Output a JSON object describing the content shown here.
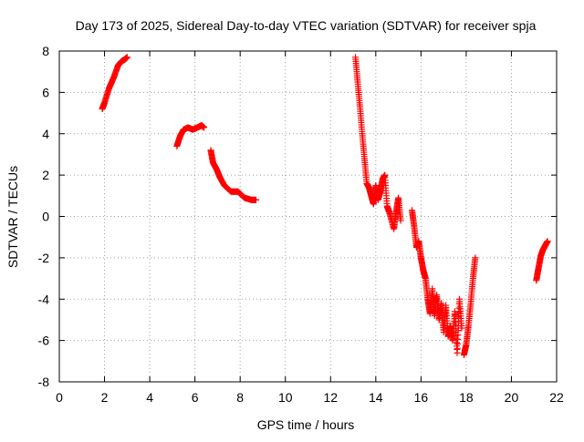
{
  "chart_data": {
    "type": "scatter",
    "title": "Day 173 of 2025, Sidereal Day-to-day VTEC variation (SDTVAR) for receiver spja",
    "xlabel": "GPS time / hours",
    "ylabel": "SDTVAR / TECUs",
    "xlim": [
      0,
      22
    ],
    "ylim": [
      -8,
      8
    ],
    "xticks": [
      0,
      2,
      4,
      6,
      8,
      10,
      12,
      14,
      16,
      18,
      20,
      22
    ],
    "yticks": [
      -8,
      -6,
      -4,
      -2,
      0,
      2,
      4,
      6,
      8
    ],
    "grid": true,
    "marker": "+",
    "color": "#ff0000",
    "series": [
      {
        "name": "SDTVAR",
        "segments": [
          {
            "x": [
              1.9,
              2.0,
              2.2,
              2.4,
              2.6,
              2.75,
              2.9,
              3.0
            ],
            "y": [
              5.2,
              5.5,
              6.2,
              6.7,
              7.3,
              7.5,
              7.6,
              7.7
            ]
          },
          {
            "x": [
              5.2,
              5.35,
              5.5,
              5.7,
              5.9,
              6.1,
              6.3,
              6.4
            ],
            "y": [
              3.4,
              3.9,
              4.2,
              4.3,
              4.2,
              4.3,
              4.4,
              4.3
            ]
          },
          {
            "x": [
              6.7,
              6.8,
              6.95,
              7.1,
              7.3,
              7.6,
              7.9,
              8.2,
              8.5,
              8.7
            ],
            "y": [
              3.2,
              2.6,
              2.3,
              1.9,
              1.5,
              1.2,
              1.2,
              0.9,
              0.8,
              0.8
            ]
          },
          {
            "x": [
              13.1,
              13.2,
              13.3,
              13.4,
              13.5,
              13.6,
              13.7,
              13.8,
              13.9,
              14.0,
              14.1,
              14.2,
              14.3,
              14.4,
              14.5,
              14.6,
              14.8,
              14.9,
              15.0,
              15.1
            ],
            "y": [
              7.7,
              6.5,
              5.3,
              4.0,
              2.8,
              1.6,
              1.4,
              1.0,
              0.6,
              1.5,
              0.8,
              1.2,
              1.8,
              2.0,
              0.5,
              0.2,
              -0.6,
              0.2,
              0.9,
              -0.2
            ]
          },
          {
            "x": [
              15.6,
              15.7,
              15.8,
              15.9,
              16.0,
              16.1,
              16.2,
              16.3,
              16.4,
              16.5,
              16.6,
              16.7,
              16.8,
              16.9,
              17.0,
              17.1,
              17.2,
              17.3,
              17.4,
              17.5,
              17.6,
              17.7,
              17.8
            ],
            "y": [
              0.3,
              -0.5,
              -1.5,
              -1.2,
              -2.0,
              -2.6,
              -3.0,
              -4.0,
              -4.7,
              -3.5,
              -4.8,
              -3.8,
              -5.0,
              -4.2,
              -5.6,
              -4.3,
              -5.8,
              -5.3,
              -6.0,
              -4.6,
              -6.6,
              -4.0,
              -5.4
            ]
          },
          {
            "x": [
              17.9,
              18.0,
              18.1,
              18.2,
              18.3,
              18.4
            ],
            "y": [
              -6.7,
              -6.2,
              -5.3,
              -4.2,
              -3.0,
              -2.0
            ]
          },
          {
            "x": [
              21.1,
              21.2,
              21.3,
              21.4,
              21.5,
              21.6
            ],
            "y": [
              -3.1,
              -2.5,
              -1.9,
              -1.6,
              -1.4,
              -1.2
            ]
          }
        ]
      }
    ]
  }
}
